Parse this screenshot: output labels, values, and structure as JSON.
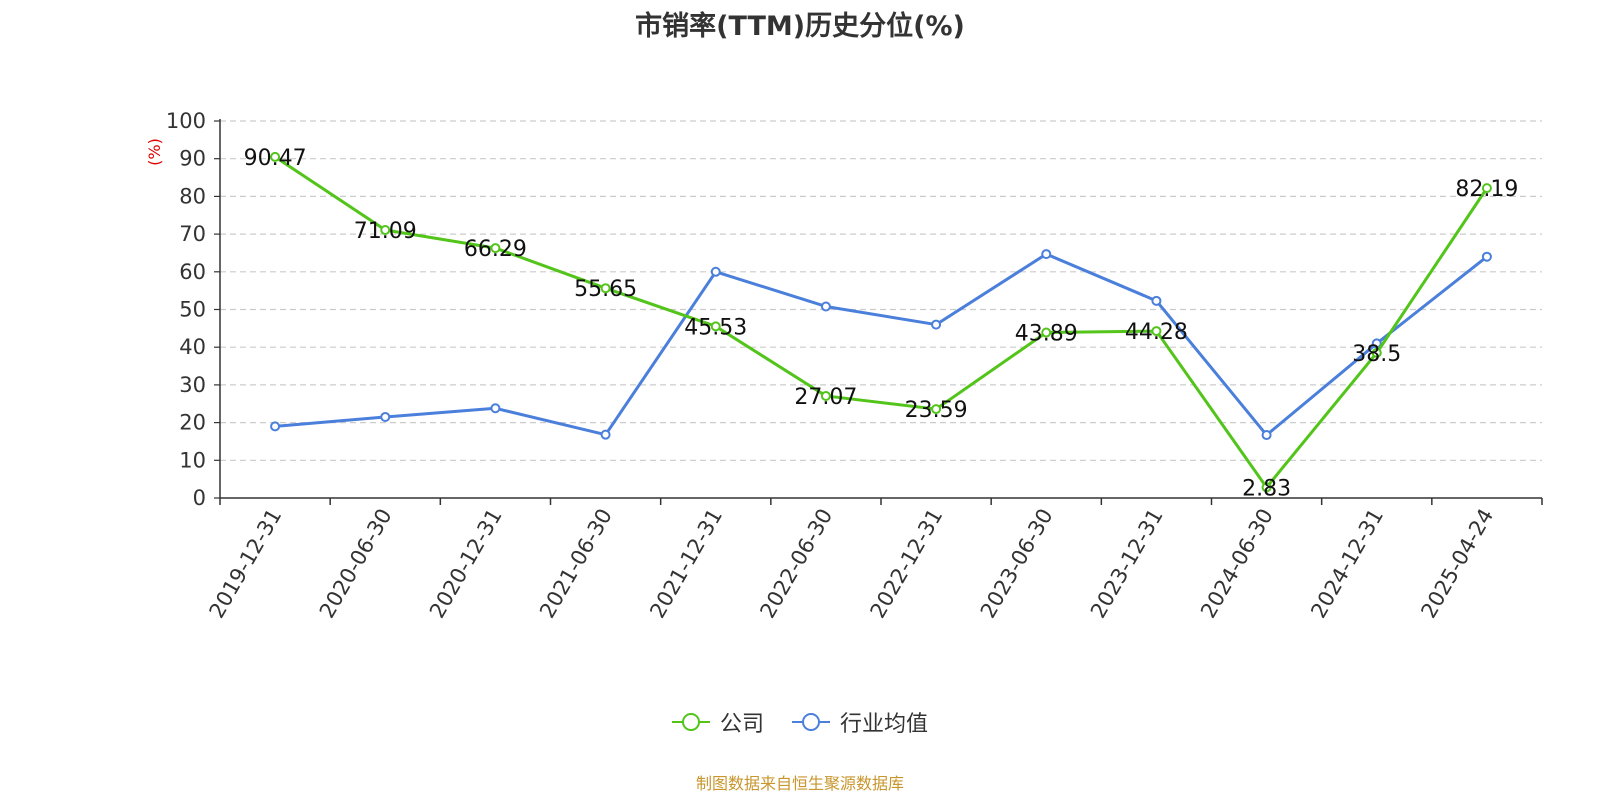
{
  "chart_data": {
    "type": "line",
    "title": "市销率(TTM)历史分位(%)",
    "ylabel": "(%)",
    "xlabel": "",
    "ylim": [
      0,
      100
    ],
    "yticks": [
      0,
      10,
      20,
      30,
      40,
      50,
      60,
      70,
      80,
      90,
      100
    ],
    "categories": [
      "2019-12-31",
      "2020-06-30",
      "2020-12-31",
      "2021-06-30",
      "2021-12-31",
      "2022-06-30",
      "2022-12-31",
      "2023-06-30",
      "2023-12-31",
      "2024-06-30",
      "2024-12-31",
      "2025-04-24"
    ],
    "series": [
      {
        "name": "公司",
        "color": "#52c41a",
        "values": [
          90.47,
          71.09,
          66.29,
          55.65,
          45.53,
          27.07,
          23.59,
          43.89,
          44.28,
          2.83,
          38.5,
          82.19
        ],
        "labels": [
          "90.47",
          "71.09",
          "66.29",
          "55.65",
          "45.53",
          "27.07",
          "23.59",
          "43.89",
          "44.28",
          "2.83",
          "38.5",
          "82.19"
        ]
      },
      {
        "name": "行业均值",
        "color": "#4a7fdb",
        "values": [
          19,
          21.5,
          23.8,
          16.8,
          60,
          50.8,
          46,
          64.7,
          52.3,
          16.7,
          41,
          64
        ]
      }
    ],
    "grid": true,
    "legend": "bottom-center"
  },
  "source_note": "制图数据来自恒生聚源数据库"
}
